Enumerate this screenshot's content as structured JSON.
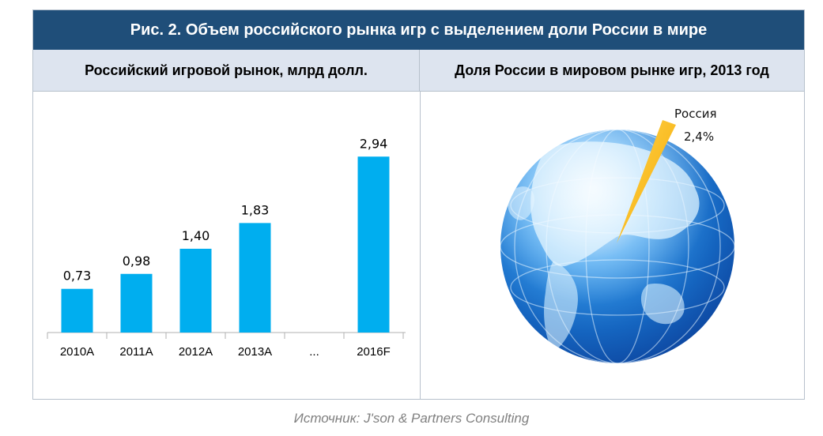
{
  "title": "Рис. 2. Объем российского рынка игр с выделением доли России в мире",
  "left_panel_title": "Российский игровой рынок, млрд долл.",
  "right_panel_title": "Доля России в мировом рынке игр, 2013 год",
  "source": "Источник: J'son & Partners Consulting",
  "colors": {
    "bar": "#00aeef",
    "header": "#1f4e79",
    "subheader": "#dde4ef",
    "wedge": "#f5c400",
    "globe": "#1e88e5"
  },
  "chart_data": [
    {
      "type": "bar",
      "title": "Российский игровой рынок, млрд долл.",
      "categories": [
        "2010A",
        "2011A",
        "2012A",
        "2013A",
        "...",
        "2016F"
      ],
      "values": [
        0.73,
        0.98,
        1.4,
        1.83,
        null,
        2.94
      ],
      "labels": [
        "0,73",
        "0,98",
        "1,40",
        "1,83",
        "",
        "2,94"
      ],
      "ylim": [
        0,
        3.3
      ],
      "grid": false,
      "axis_ticks": true
    },
    {
      "type": "pie",
      "title": "Доля России в мировом рынке игр, 2013 год",
      "slices": [
        {
          "name": "Россия",
          "value": 2.4,
          "label": "2,4%"
        }
      ],
      "note": "share shown as a wedge over a globe illustration"
    }
  ]
}
